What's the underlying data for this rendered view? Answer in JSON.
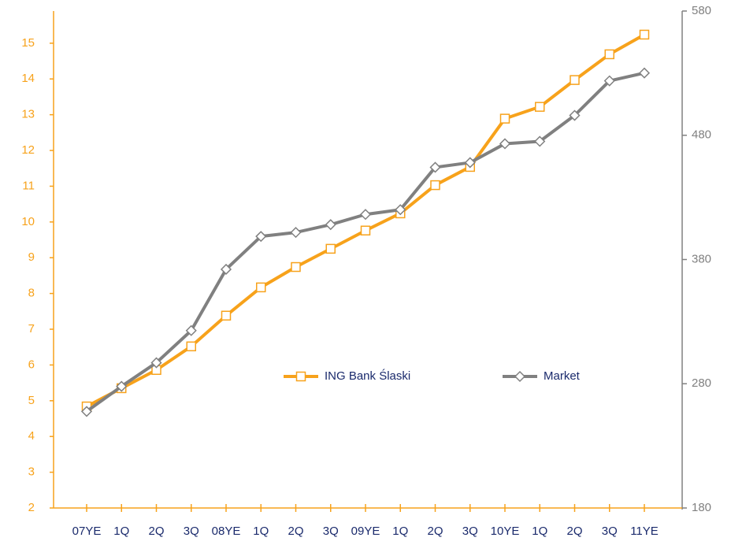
{
  "chart_data": {
    "type": "line",
    "categories": [
      "07YE",
      "1Q",
      "2Q",
      "3Q",
      "08YE",
      "1Q",
      "2Q",
      "3Q",
      "09YE",
      "1Q",
      "2Q",
      "3Q",
      "10YE",
      "1Q",
      "2Q",
      "3Q",
      "11YE"
    ],
    "series": [
      {
        "name": "ING Bank Ślaski",
        "color": "#f7a21b",
        "marker": "square",
        "values": [
          4.84,
          5.35,
          5.86,
          6.52,
          7.38,
          8.17,
          8.74,
          9.25,
          9.76,
          10.24,
          11.03,
          11.54,
          12.89,
          13.22,
          13.97,
          14.69,
          15.24
        ]
      },
      {
        "name": "Market",
        "color": "#808080",
        "marker": "diamond",
        "axis": "y2",
        "values": [
          257.7,
          277.9,
          296.9,
          322.8,
          372.1,
          398.6,
          401.8,
          408.1,
          416.3,
          420.1,
          454.2,
          458.0,
          473.2,
          475.1,
          496.0,
          523.8,
          530.1
        ]
      }
    ],
    "ylim": [
      2,
      15.9
    ],
    "yticks": [
      2,
      3,
      4,
      5,
      6,
      7,
      8,
      9,
      10,
      11,
      12,
      13,
      14,
      15
    ],
    "ycolor": "#f7a21b",
    "y2lim": [
      180,
      580
    ],
    "y2ticks": [
      180,
      280,
      380,
      480,
      580
    ],
    "y2color": "#808080",
    "legend": "center"
  }
}
